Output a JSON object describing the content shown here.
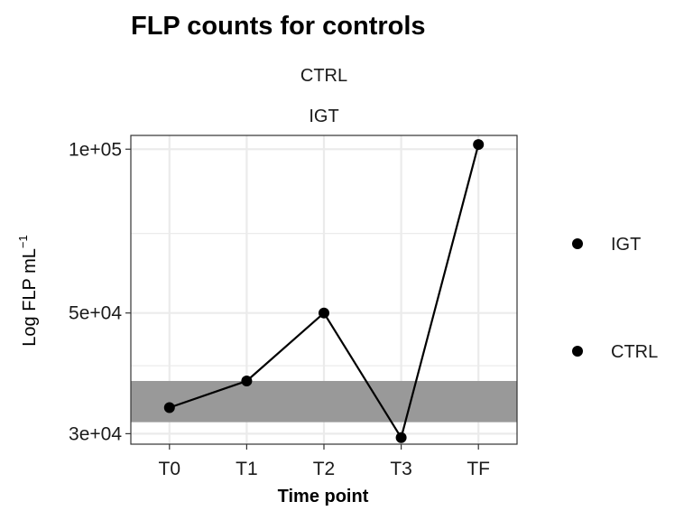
{
  "chart_data": {
    "type": "line",
    "title": "FLP counts for controls",
    "strip_labels": [
      "CTRL",
      "IGT"
    ],
    "xlabel": "Time point",
    "ylabel": {
      "main": "Log FLP  mL",
      "superscript": "−1"
    },
    "categories": [
      "T0",
      "T1",
      "T2",
      "T3",
      "TF"
    ],
    "series": [
      {
        "values": [
          33500,
          37500,
          50000,
          29500,
          102000
        ]
      }
    ],
    "y_scale": "log",
    "ylim": [
      28700,
      106000
    ],
    "y_ticks": [
      {
        "value": 30000,
        "label": "3e+04"
      },
      {
        "value": 50000,
        "label": "5e+04"
      },
      {
        "value": 100000,
        "label": "1e+05"
      }
    ],
    "y_minor_ticks": [
      40000,
      70000
    ],
    "shaded_band": {
      "from": 31500,
      "to": 37500,
      "color": "#999999"
    },
    "legend": {
      "position": "right",
      "entries": [
        "IGT",
        "CTRL"
      ]
    },
    "grid": true,
    "colors": {
      "line": "#000000",
      "point": "#000000",
      "grid": "#ebebeb",
      "panel_border": "#333333"
    }
  }
}
